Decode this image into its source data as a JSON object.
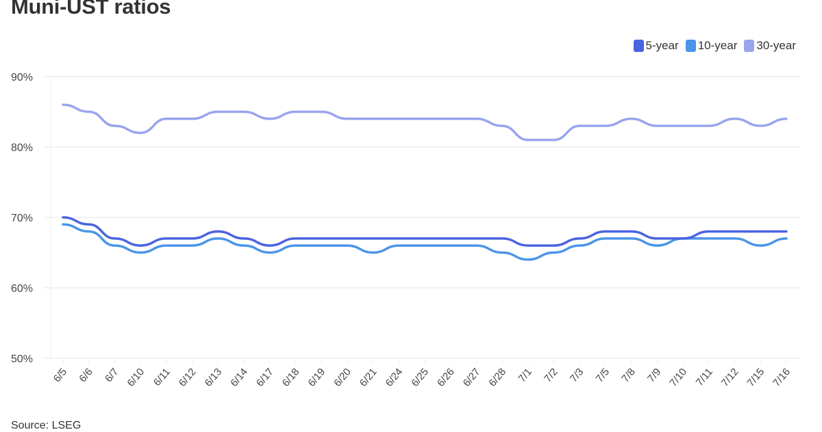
{
  "title": "Muni-UST ratios",
  "source": "Source: LSEG",
  "legend": [
    {
      "label": "5-year",
      "color": "#4a63e0"
    },
    {
      "label": "10-year",
      "color": "#4a95e8"
    },
    {
      "label": "30-year",
      "color": "#99a4ee"
    }
  ],
  "chart_data": {
    "type": "line",
    "title": "Muni-UST ratios",
    "xlabel": "",
    "ylabel": "",
    "ylim": [
      50,
      90
    ],
    "yticks": [
      "50%",
      "60%",
      "70%",
      "80%",
      "90%"
    ],
    "grid": true,
    "legend_position": "top-right",
    "categories": [
      "6/5",
      "6/6",
      "6/7",
      "6/10",
      "6/11",
      "6/12",
      "6/13",
      "6/14",
      "6/17",
      "6/18",
      "6/19",
      "6/20",
      "6/21",
      "6/24",
      "6/25",
      "6/26",
      "6/27",
      "6/28",
      "7/1",
      "7/2",
      "7/3",
      "7/5",
      "7/8",
      "7/9",
      "7/10",
      "7/11",
      "7/12",
      "7/15",
      "7/16"
    ],
    "series": [
      {
        "name": "5-year",
        "color": "#4a63e0",
        "values": [
          70,
          69,
          67,
          66,
          67,
          67,
          68,
          67,
          66,
          67,
          67,
          67,
          67,
          67,
          67,
          67,
          67,
          67,
          66,
          66,
          67,
          68,
          68,
          67,
          67,
          68,
          68,
          68,
          68
        ]
      },
      {
        "name": "10-year",
        "color": "#4a95e8",
        "values": [
          69,
          68,
          66,
          65,
          66,
          66,
          67,
          66,
          65,
          66,
          66,
          66,
          65,
          66,
          66,
          66,
          66,
          65,
          64,
          65,
          66,
          67,
          67,
          66,
          67,
          67,
          67,
          66,
          67
        ]
      },
      {
        "name": "30-year",
        "color": "#99a4ee",
        "values": [
          86,
          85,
          83,
          82,
          84,
          84,
          85,
          85,
          84,
          85,
          85,
          84,
          84,
          84,
          84,
          84,
          84,
          83,
          81,
          81,
          83,
          83,
          84,
          83,
          83,
          83,
          84,
          83,
          84
        ]
      }
    ]
  }
}
